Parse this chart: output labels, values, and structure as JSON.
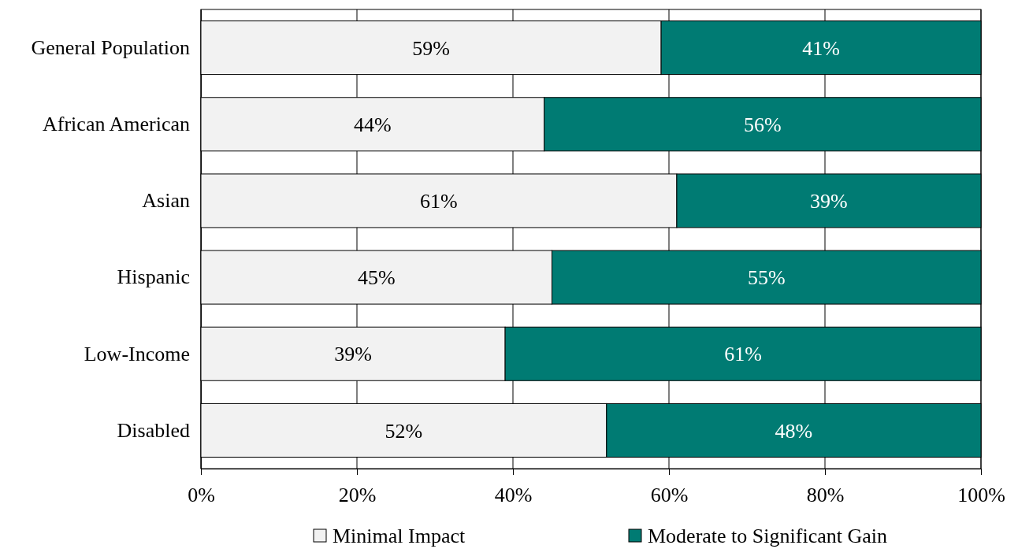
{
  "chart_data": {
    "type": "bar",
    "orientation": "horizontal",
    "stacked": true,
    "grid": "x",
    "legend": "bottom",
    "categories": [
      "General Population",
      "African American",
      "Asian",
      "Hispanic",
      "Low-Income",
      "Disabled"
    ],
    "series": [
      {
        "name": "Minimal Impact",
        "color": "#f2f2f2",
        "values": [
          59,
          44,
          61,
          45,
          39,
          52
        ],
        "value_labels": [
          "59%",
          "44%",
          "61%",
          "45%",
          "39%",
          "52%"
        ]
      },
      {
        "name": "Moderate to Significant Gain",
        "color": "#007b73",
        "values": [
          41,
          56,
          39,
          55,
          61,
          48
        ],
        "value_labels": [
          "41%",
          "56%",
          "39%",
          "55%",
          "61%",
          "48%"
        ]
      }
    ],
    "xlim": [
      0,
      100
    ],
    "xticks": [
      {
        "value": 0,
        "label": "0%"
      },
      {
        "value": 20,
        "label": "20%"
      },
      {
        "value": 40,
        "label": "40%"
      },
      {
        "value": 60,
        "label": "60%"
      },
      {
        "value": 80,
        "label": "80%"
      },
      {
        "value": 100,
        "label": "100%"
      }
    ]
  }
}
